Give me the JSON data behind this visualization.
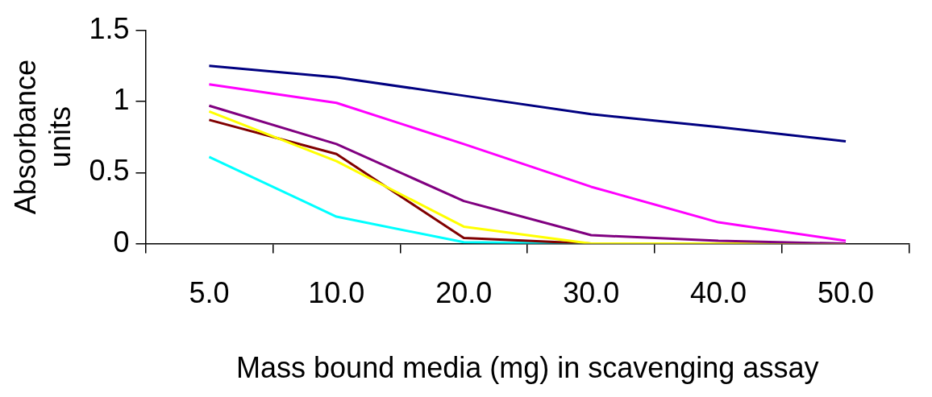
{
  "chart_data": {
    "type": "line",
    "xlabel": "Mass bound media (mg) in scavenging assay",
    "ylabel": "Absorbance units",
    "categories": [
      "5.0",
      "10.0",
      "20.0",
      "30.0",
      "40.0",
      "50.0"
    ],
    "ylim": [
      0,
      1.5
    ],
    "yticks": [
      0,
      0.5,
      1,
      1.5
    ],
    "grid": false,
    "legend": false,
    "marker": "none",
    "line_style": "solid",
    "series": [
      {
        "color": "#000080",
        "values": [
          1.25,
          1.17,
          1.04,
          0.91,
          0.82,
          0.72
        ]
      },
      {
        "color": "#ff00ff",
        "values": [
          1.12,
          0.99,
          0.7,
          0.4,
          0.15,
          0.02
        ]
      },
      {
        "color": "#800080",
        "values": [
          0.97,
          0.7,
          0.3,
          0.06,
          0.02,
          0
        ]
      },
      {
        "color": "#ffff00",
        "values": [
          0.93,
          0.58,
          0.12,
          0,
          0,
          0
        ]
      },
      {
        "color": "#800000",
        "values": [
          0.87,
          0.63,
          0.04,
          0,
          0,
          0
        ]
      },
      {
        "color": "#00ffff",
        "values": [
          0.61,
          0.19,
          0.01,
          0,
          0,
          0
        ]
      }
    ]
  }
}
